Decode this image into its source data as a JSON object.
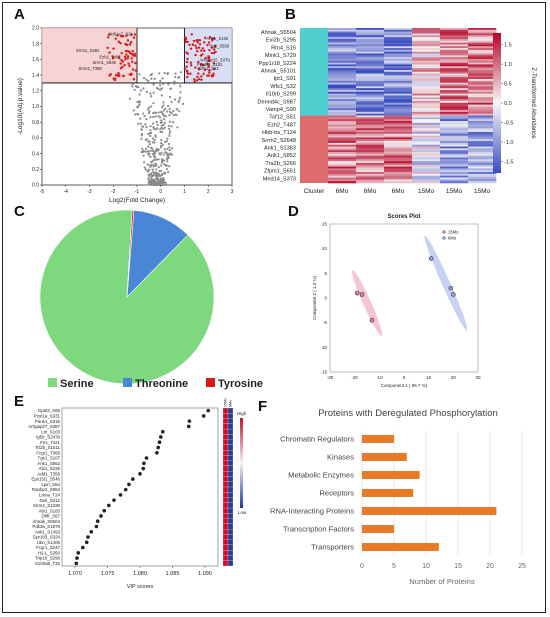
{
  "panels": {
    "a": "A",
    "b": "B",
    "c": "C",
    "d": "D",
    "e": "E",
    "f": "F"
  },
  "chart_data": [
    {
      "panel": "A",
      "type": "scatter",
      "xlabel": "Log2(Fold Change)",
      "ylabel": "-Log10(Adj.p.value)",
      "xlim": [
        -5,
        3
      ],
      "ylim": [
        0,
        2.0
      ],
      "xticks": [
        -5,
        -4,
        -3,
        -2,
        -1,
        0,
        1,
        2,
        3
      ],
      "yticks": [
        0,
        0.2,
        0.4,
        0.6,
        0.8,
        1.0,
        1.2,
        1.4,
        1.6,
        1.8,
        2.0
      ],
      "significance_threshold": 1.3,
      "fold_change_thresholds": [
        -1,
        1
      ],
      "colors": {
        "significant": "#d7191c",
        "nonsignificant": "#8a8a8a",
        "region_down": "#f8d3d3",
        "region_up": "#d9def5"
      },
      "labeled_points": [
        {
          "label": "Akt81a7_S2x",
          "x": -1.1,
          "y": 1.93
        },
        {
          "label": "Srrm1_S381",
          "x": -2.5,
          "y": 1.72
        },
        {
          "label": "Ezh2_T487",
          "x": -1.6,
          "y": 1.64
        },
        {
          "label": "Srrm1_S838",
          "x": -1.8,
          "y": 1.57
        },
        {
          "label": "Srrm2_T398",
          "x": -2.4,
          "y": 1.49
        },
        {
          "label": "Ahnk_S155",
          "x": 1.8,
          "y": 1.87
        },
        {
          "label": "Ttc1_S556",
          "x": 1.9,
          "y": 1.78
        },
        {
          "label": "Arhgap25_S379",
          "x": 1.5,
          "y": 1.6
        },
        {
          "label": "Ppp6r1_S181",
          "x": 1.4,
          "y": 1.54
        },
        {
          "label": "Wfs1_S32",
          "x": 1.5,
          "y": 1.49
        }
      ]
    },
    {
      "panel": "B",
      "type": "heatmap",
      "row_labels": [
        "Ahnak_S5504",
        "Evi2b_S295",
        "Rtn4_S16",
        "Mink1_S729",
        "Ppp1r18_S224",
        "Ahnak_S5101",
        "Ipt1_S91",
        "Wfs1_S32",
        "Il10rb_S299",
        "Dennd4c_S987",
        "Vamp4_S90",
        "Taf12_S51",
        "Ezh2_T487",
        "Hbb-bs_T124",
        "Srrm2_S2648",
        "Ank1_S1383",
        "Ank1_S852",
        "Tra2b_S266",
        "Zfpm1_S651",
        "Med14_S373"
      ],
      "column_labels": [
        "Cluster",
        "6Mo",
        "6Mo",
        "6Mo",
        "15Mo",
        "15Mo",
        "15Mo"
      ],
      "colorbar_label": "Z-Transformed Abundance",
      "colorbar_ticks": [
        1.5,
        1.0,
        0.5,
        0.0,
        -0.5,
        -1.0,
        -1.5
      ],
      "colorbar_range": [
        -1.8,
        1.8
      ],
      "cluster_colors": [
        "#4fcfcf",
        "#de6c6c"
      ],
      "cluster_split_fraction": 0.57
    },
    {
      "panel": "C",
      "type": "pie",
      "labels": [
        "Serine",
        "Threonine",
        "Tyrosine"
      ],
      "values": [
        88.6,
        11.1,
        0.3
      ],
      "colors": [
        "#7ed87e",
        "#4a86d6",
        "#d7191c"
      ]
    },
    {
      "panel": "D",
      "type": "scatter",
      "title": "Scores Plot",
      "xlabel": "Component 1 ( 96.7 %)",
      "ylabel": "Component 2 ( 1.3 %)",
      "xlim": [
        -30,
        30
      ],
      "ylim": [
        -15,
        15
      ],
      "xticks": [
        -30,
        -20,
        -10,
        0,
        10,
        20,
        30
      ],
      "yticks": [
        -15,
        -10,
        -5,
        0,
        5,
        10,
        15
      ],
      "series": [
        {
          "name": "15Mo",
          "color": "#e87fa8",
          "points": [
            [
              -19,
              1
            ],
            [
              -17,
              0.7
            ],
            [
              -13,
              -4.5
            ]
          ]
        },
        {
          "name": "6Mo",
          "color": "#8aa3e8",
          "points": [
            [
              11,
              8
            ],
            [
              19,
              2
            ],
            [
              20,
              0.7
            ]
          ]
        }
      ]
    },
    {
      "panel": "E",
      "type": "scatter",
      "xlabel": "VIP scores",
      "xlim": [
        1.068,
        1.092
      ],
      "xticks": [
        1.07,
        1.075,
        1.08,
        1.085,
        1.09
      ],
      "xtick_labels": [
        "1.070",
        "1.075",
        "1.080",
        "1.085",
        "1.090"
      ],
      "side_columns": [
        "15Mo",
        "6Mo"
      ],
      "legend_high": "High",
      "legend_low": "Low",
      "features": [
        "Gpat3_S68",
        "Pcyt1a_S331",
        "Pank1_S315",
        "Arhgap27_S387",
        "Ltn_S103",
        "Igf2r_S2476",
        "Fes_T421",
        "Tcl2b_S1511",
        "Fcgr1_T368",
        "Tgs1_S107",
        "Ank1_S852",
        "Abi1_S225",
        "Add1_T358",
        "Eps15l1_S546",
        "Lpin_S54",
        "Ranbp2_S954",
        "Lmna_T24",
        "Dek_S312",
        "Srrm2_S1338",
        "Abi1_S183",
        "Dhfr_S67",
        "Ahnak_S5504",
        "Pdk3a_S1878",
        "Ank1_S1493",
        "Gpr183_S324",
        "Ubn_S1405",
        "Fcgr1_S247",
        "H2-L_S350",
        "Trip10_S296",
        "S100a8_T32"
      ],
      "values": [
        1.0905,
        1.0898,
        1.0876,
        1.0875,
        1.0835,
        1.0832,
        1.083,
        1.0828,
        1.0826,
        1.081,
        1.0806,
        1.0805,
        1.08,
        1.0789,
        1.0783,
        1.0778,
        1.077,
        1.076,
        1.0752,
        1.0745,
        1.074,
        1.0735,
        1.0733,
        1.0725,
        1.072,
        1.0718,
        1.0712,
        1.0705,
        1.0703,
        1.0702
      ]
    },
    {
      "panel": "F",
      "type": "bar",
      "orientation": "horizontal",
      "title": "Proteins with Deregulated Phosphorylation",
      "xlabel": "Number of Proteins",
      "xlim": [
        0,
        25
      ],
      "xticks": [
        0,
        5,
        10,
        15,
        20,
        25
      ],
      "categories": [
        "Chromatin Regulators",
        "Kinases",
        "Metabolic Enzymes",
        "Receptors",
        "RNA-Interacting Proteins",
        "Transcription Factors",
        "Transporters"
      ],
      "values": [
        5,
        7,
        9,
        8,
        21,
        5,
        12
      ],
      "color": "#e87a26"
    }
  ]
}
